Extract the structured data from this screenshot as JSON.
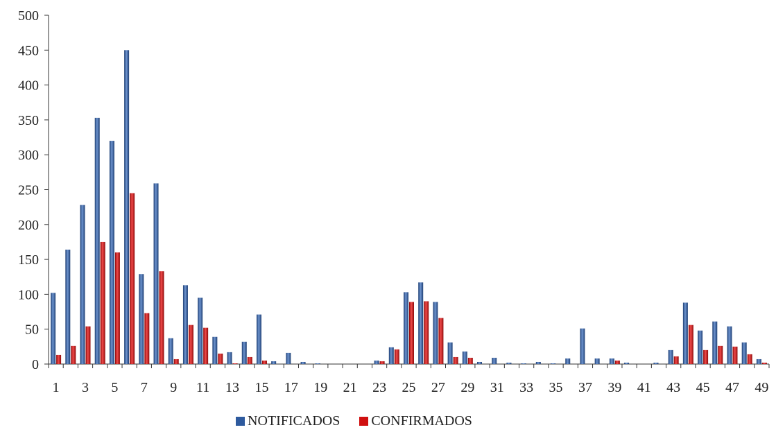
{
  "chart_data": {
    "type": "bar",
    "categories": [
      1,
      2,
      3,
      4,
      5,
      6,
      7,
      8,
      9,
      10,
      11,
      12,
      13,
      14,
      15,
      16,
      17,
      18,
      19,
      20,
      21,
      22,
      23,
      24,
      25,
      26,
      27,
      28,
      29,
      30,
      31,
      32,
      33,
      34,
      35,
      36,
      37,
      38,
      39,
      40,
      41,
      42,
      43,
      44,
      45,
      46,
      47,
      48,
      49
    ],
    "x_tick_labels": [
      "1",
      "3",
      "5",
      "7",
      "9",
      "11",
      "13",
      "15",
      "17",
      "19",
      "21",
      "23",
      "25",
      "27",
      "29",
      "31",
      "33",
      "35",
      "37",
      "39",
      "41",
      "43",
      "45",
      "47",
      "49"
    ],
    "y_tick_labels": [
      "0",
      "50",
      "100",
      "150",
      "200",
      "250",
      "300",
      "350",
      "400",
      "450",
      "500"
    ],
    "ylim": [
      0,
      500
    ],
    "legend_position": "bottom",
    "grid": false,
    "series": [
      {
        "name": "NOTIFICADOS",
        "color": "#2E5A9E",
        "values": [
          102,
          164,
          228,
          353,
          320,
          450,
          129,
          259,
          37,
          113,
          95,
          39,
          17,
          32,
          71,
          4,
          16,
          3,
          1,
          0,
          0,
          0,
          5,
          24,
          103,
          117,
          89,
          31,
          18,
          3,
          9,
          2,
          1,
          3,
          1,
          8,
          51,
          8,
          8,
          2,
          0,
          2,
          20,
          88,
          48,
          61,
          54,
          31,
          7
        ]
      },
      {
        "name": "CONFIRMADOS",
        "color": "#D01010",
        "values": [
          13,
          26,
          54,
          175,
          160,
          245,
          73,
          133,
          7,
          56,
          52,
          15,
          1,
          10,
          5,
          0,
          0,
          0,
          0,
          0,
          0,
          0,
          4,
          21,
          89,
          90,
          66,
          10,
          9,
          0,
          0,
          0,
          0,
          0,
          0,
          0,
          0,
          0,
          5,
          0,
          0,
          0,
          11,
          56,
          20,
          26,
          25,
          14,
          2
        ]
      }
    ]
  }
}
